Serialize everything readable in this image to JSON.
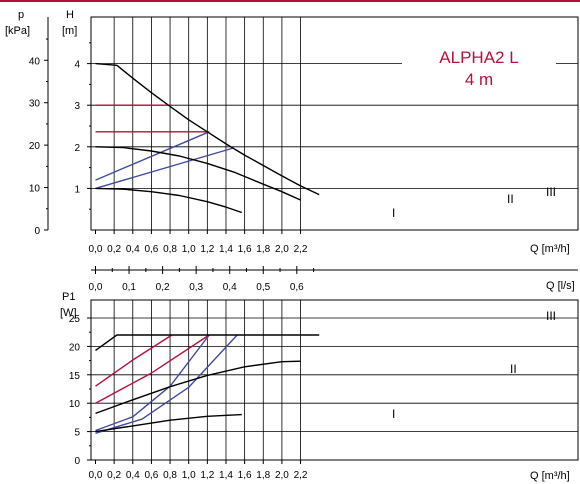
{
  "colors": {
    "accent": "#b3123d",
    "curve": "#000000",
    "proportional": "#3f4aa0",
    "constant": "#b3123d",
    "grid": "#000000"
  },
  "chart_data": [
    {
      "type": "line",
      "model_line1": "ALPHA2 L",
      "model_line2": "4 m",
      "ylabel_left_top": "p",
      "ylabel_left_bottom": "[kPa]",
      "ylabel_right_top": "H",
      "ylabel_right_bottom": "[m]",
      "xlabel": "Q [m³/h]",
      "xlim": [
        0,
        2.45
      ],
      "ylim": [
        0,
        4.8
      ],
      "x_ticks": [
        "0,0",
        "0,2",
        "0,4",
        "0,6",
        "0,8",
        "1,0",
        "1,2",
        "1,4",
        "1,6",
        "1,8",
        "2,0",
        "2,2"
      ],
      "kpa_ticks": [
        "0",
        "10",
        "20",
        "30",
        "40"
      ],
      "m_ticks": [
        "1",
        "2",
        "3",
        "4"
      ],
      "grid": true,
      "series": [
        {
          "name": "I",
          "kind": "speed",
          "x": [
            0,
            0.3,
            0.6,
            0.9,
            1.2,
            1.4,
            1.57
          ],
          "y": [
            1.0,
            0.98,
            0.92,
            0.83,
            0.68,
            0.55,
            0.42
          ]
        },
        {
          "name": "II",
          "kind": "speed",
          "x": [
            0,
            0.3,
            0.6,
            0.9,
            1.2,
            1.5,
            1.8,
            2.0,
            2.2
          ],
          "y": [
            2.0,
            1.98,
            1.9,
            1.78,
            1.6,
            1.38,
            1.1,
            0.92,
            0.72
          ]
        },
        {
          "name": "III",
          "kind": "speed",
          "x": [
            0,
            0.23,
            0.4,
            0.6,
            0.8,
            1.0,
            1.2,
            1.4,
            1.6,
            1.8,
            2.0,
            2.2,
            2.4
          ],
          "y": [
            4.0,
            3.96,
            3.65,
            3.3,
            2.97,
            2.65,
            2.36,
            2.07,
            1.8,
            1.55,
            1.3,
            1.06,
            0.85
          ]
        }
      ],
      "control_curves": [
        {
          "kind": "proportional",
          "x": [
            0,
            1.22
          ],
          "y": [
            1.2,
            2.36
          ]
        },
        {
          "kind": "proportional",
          "x": [
            0,
            1.48
          ],
          "y": [
            1.0,
            1.97
          ]
        },
        {
          "kind": "constant",
          "x": [
            0,
            0.82
          ],
          "y": [
            3.0,
            3.0
          ]
        },
        {
          "kind": "constant",
          "x": [
            0,
            1.22
          ],
          "y": [
            2.36,
            2.36
          ]
        }
      ]
    },
    {
      "type": "axis",
      "xlabel": "Q [l/s]",
      "xlim": [
        0,
        0.68
      ],
      "x_ticks": [
        "0,0",
        "0,1",
        "0,2",
        "0,3",
        "0,4",
        "0,5",
        "0,6"
      ]
    },
    {
      "type": "line",
      "ylabel_top": "P1",
      "ylabel_bottom": "[W]",
      "xlabel": "Q [m³/h]",
      "xlim": [
        0,
        2.45
      ],
      "ylim": [
        0,
        25
      ],
      "x_ticks": [
        "0,0",
        "0,2",
        "0,4",
        "0,6",
        "0,8",
        "1,0",
        "1,2",
        "1,4",
        "1,6",
        "1,8",
        "2,0",
        "2,2"
      ],
      "y_ticks": [
        "0",
        "5",
        "10",
        "15",
        "20",
        "25"
      ],
      "grid": true,
      "series": [
        {
          "name": "I",
          "kind": "speed",
          "x": [
            0,
            0.4,
            0.8,
            1.2,
            1.57
          ],
          "y": [
            5.0,
            6.0,
            7.0,
            7.7,
            8.0
          ]
        },
        {
          "name": "II",
          "kind": "speed",
          "x": [
            0,
            0.4,
            0.8,
            1.2,
            1.6,
            2.0,
            2.2
          ],
          "y": [
            8.2,
            10.6,
            12.9,
            14.9,
            16.4,
            17.3,
            17.4
          ]
        },
        {
          "name": "III",
          "kind": "speed",
          "x": [
            0,
            0.23,
            0.8,
            1.6,
            2.4
          ],
          "y": [
            19.3,
            22.0,
            22.0,
            22.0,
            22.0
          ]
        }
      ],
      "control_curves": [
        {
          "kind": "proportional",
          "x": [
            0,
            0.4,
            0.8,
            1.22
          ],
          "y": [
            5.2,
            7.6,
            13.0,
            22.0
          ]
        },
        {
          "kind": "proportional",
          "x": [
            0,
            0.5,
            1.0,
            1.52
          ],
          "y": [
            4.7,
            7.2,
            12.8,
            22.0
          ]
        },
        {
          "kind": "constant",
          "x": [
            0,
            0.4,
            0.82
          ],
          "y": [
            13.0,
            17.6,
            22.0
          ]
        },
        {
          "kind": "constant",
          "x": [
            0,
            0.6,
            1.22
          ],
          "y": [
            10.0,
            15.3,
            22.0
          ]
        }
      ]
    }
  ]
}
